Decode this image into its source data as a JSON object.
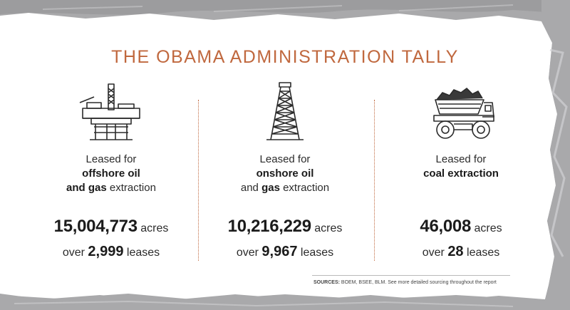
{
  "title": "THE OBAMA ADMINISTRATION TALLY",
  "columns": [
    {
      "icon": "offshore-oil-rig-icon",
      "desc_line1": "Leased for",
      "desc_line2_bold": "offshore oil",
      "desc_line3_bold": "and gas",
      "desc_line3_rest": " extraction",
      "acres": "15,004,773",
      "acres_unit": " acres",
      "over": "over ",
      "leases": "2,999",
      "leases_unit": " leases"
    },
    {
      "icon": "onshore-oil-derrick-icon",
      "desc_line1": "Leased for",
      "desc_line2_bold": "onshore oil",
      "desc_line3_pre": "and ",
      "desc_line3_bold": "gas",
      "desc_line3_rest": " extraction",
      "acres": "10,216,229",
      "acres_unit": " acres",
      "over": "over ",
      "leases": "9,967",
      "leases_unit": " leases"
    },
    {
      "icon": "coal-mining-truck-icon",
      "desc_line1": "Leased for",
      "desc_line2_bold": "coal extraction",
      "acres": "46,008",
      "acres_unit": " acres",
      "over": "over ",
      "leases": "28",
      "leases_unit": " leases"
    }
  ],
  "sources_label": "SOURCES:",
  "sources_text": " BOEM, BSEE, BLM. See more detailed sourcing throughout the report",
  "colors": {
    "accent": "#c0683e",
    "background_gray": "#a9a9ab",
    "panel": "#ffffff",
    "text": "#222222"
  }
}
